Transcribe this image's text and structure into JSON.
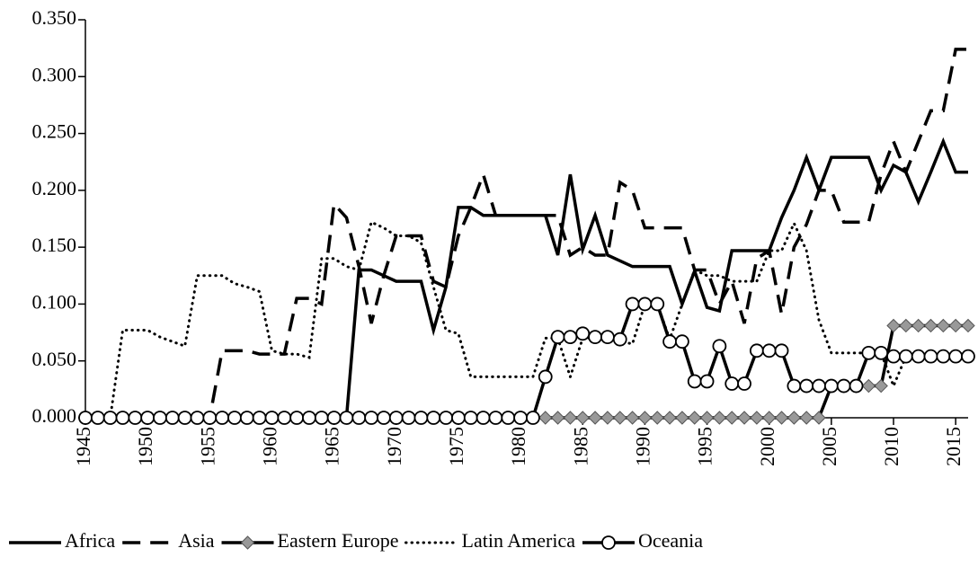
{
  "chart_data": {
    "type": "line",
    "x": [
      1945,
      1946,
      1947,
      1948,
      1949,
      1950,
      1951,
      1952,
      1953,
      1954,
      1955,
      1956,
      1957,
      1958,
      1959,
      1960,
      1961,
      1962,
      1963,
      1964,
      1965,
      1966,
      1967,
      1968,
      1969,
      1970,
      1971,
      1972,
      1973,
      1974,
      1975,
      1976,
      1977,
      1978,
      1979,
      1980,
      1981,
      1982,
      1983,
      1984,
      1985,
      1986,
      1987,
      1988,
      1989,
      1990,
      1991,
      1992,
      1993,
      1994,
      1995,
      1996,
      1997,
      1998,
      1999,
      2000,
      2001,
      2002,
      2003,
      2004,
      2005,
      2006,
      2007,
      2008,
      2009,
      2010,
      2011,
      2012,
      2013,
      2014,
      2015,
      2016
    ],
    "xlim": [
      1945,
      2016
    ],
    "xticks": [
      1945,
      1950,
      1955,
      1960,
      1965,
      1970,
      1975,
      1980,
      1985,
      1990,
      1995,
      2000,
      2005,
      2010,
      2015
    ],
    "ylim": [
      0,
      0.35
    ],
    "yticks": [
      {
        "value": 0,
        "label": "0.000"
      },
      {
        "value": 0.05,
        "label": "0.050"
      },
      {
        "value": 0.1,
        "label": "0.100"
      },
      {
        "value": 0.15,
        "label": "0.150"
      },
      {
        "value": 0.2,
        "label": "0.200"
      },
      {
        "value": 0.25,
        "label": "0.250"
      },
      {
        "value": 0.3,
        "label": "0.300"
      },
      {
        "value": 0.35,
        "label": "0.350"
      }
    ],
    "legend": "bottom",
    "series": [
      {
        "name": "Africa",
        "color": "#000000",
        "line_style": "solid",
        "marker": "none",
        "values": [
          0,
          0,
          0,
          0,
          0,
          0,
          0,
          0,
          0,
          0,
          0,
          0,
          0,
          0,
          0,
          0,
          0,
          0,
          0,
          0,
          0,
          0,
          0.13,
          0.13,
          0.125,
          0.12,
          0.12,
          0.12,
          0.077,
          0.115,
          0.185,
          0.185,
          0.178,
          0.178,
          0.178,
          0.178,
          0.178,
          0.178,
          0.143,
          0.214,
          0.148,
          0.178,
          0.143,
          0.138,
          0.133,
          0.133,
          0.133,
          0.133,
          0.1,
          0.129,
          0.097,
          0.094,
          0.147,
          0.147,
          0.147,
          0.147,
          0.176,
          0.2,
          0.229,
          0.2,
          0.229,
          0.229,
          0.229,
          0.229,
          0.2,
          0.222,
          0.216,
          0.19,
          0.216,
          0.243,
          0.216,
          0.216
        ]
      },
      {
        "name": "Asia",
        "color": "#000000",
        "line_style": "dashed",
        "marker": "none",
        "values": [
          0,
          0,
          0,
          0,
          0,
          0,
          0,
          0,
          0,
          0,
          0,
          0.059,
          0.059,
          0.059,
          0.056,
          0.056,
          0.056,
          0.105,
          0.105,
          0.1,
          0.188,
          0.176,
          0.133,
          0.083,
          0.125,
          0.16,
          0.16,
          0.16,
          0.12,
          0.115,
          0.16,
          0.185,
          0.214,
          0.178,
          0.178,
          0.178,
          0.178,
          0.178,
          0.178,
          0.143,
          0.15,
          0.143,
          0.143,
          0.207,
          0.2,
          0.167,
          0.167,
          0.167,
          0.167,
          0.13,
          0.13,
          0.1,
          0.12,
          0.083,
          0.14,
          0.147,
          0.091,
          0.15,
          0.17,
          0.2,
          0.2,
          0.172,
          0.172,
          0.172,
          0.214,
          0.243,
          0.216,
          0.243,
          0.27,
          0.27,
          0.324,
          0.324
        ]
      },
      {
        "name": "Eastern Europe",
        "color": "#000000",
        "marker_color": "#999999",
        "line_style": "solid",
        "marker": "diamond",
        "values": [
          null,
          null,
          null,
          null,
          null,
          null,
          null,
          null,
          null,
          null,
          null,
          null,
          null,
          null,
          null,
          null,
          null,
          null,
          null,
          null,
          null,
          null,
          null,
          null,
          null,
          null,
          null,
          null,
          null,
          null,
          null,
          null,
          null,
          null,
          null,
          null,
          null,
          0,
          0,
          0,
          0,
          0,
          0,
          0,
          0,
          0,
          0,
          0,
          0,
          0,
          0,
          0,
          0,
          0,
          0,
          0,
          0,
          0,
          0,
          0,
          0.028,
          0.028,
          0.028,
          0.028,
          0.028,
          0.081,
          0.081,
          0.081,
          0.081,
          0.081,
          0.081,
          0.081
        ]
      },
      {
        "name": "Latin America",
        "color": "#000000",
        "line_style": "dotted",
        "marker": "none",
        "values": [
          0,
          0,
          0,
          0.077,
          0.077,
          0.077,
          0.071,
          0.067,
          0.063,
          0.125,
          0.125,
          0.125,
          0.118,
          0.115,
          0.111,
          0.059,
          0.056,
          0.056,
          0.053,
          0.14,
          0.14,
          0.133,
          0.13,
          0.172,
          0.167,
          0.16,
          0.16,
          0.154,
          0.115,
          0.077,
          0.074,
          0.036,
          0.036,
          0.036,
          0.036,
          0.036,
          0.036,
          0.07,
          0.07,
          0.036,
          0.07,
          0.07,
          0.07,
          0.067,
          0.065,
          0.1,
          0.1,
          0.069,
          0.1,
          0.13,
          0.125,
          0.125,
          0.12,
          0.12,
          0.12,
          0.147,
          0.147,
          0.171,
          0.147,
          0.086,
          0.057,
          0.057,
          0.057,
          0.057,
          0.057,
          0.028,
          0.054,
          0.054,
          0.054,
          0.054,
          0.054,
          0.054
        ]
      },
      {
        "name": "Oceania",
        "color": "#000000",
        "marker_color": "#ffffff",
        "line_style": "solid",
        "marker": "circle",
        "values": [
          0,
          0,
          0,
          0,
          0,
          0,
          0,
          0,
          0,
          0,
          0,
          0,
          0,
          0,
          0,
          0,
          0,
          0,
          0,
          0,
          0,
          0,
          0,
          0,
          0,
          0,
          0,
          0,
          0,
          0,
          0,
          0,
          0,
          0,
          0,
          0,
          0,
          0.036,
          0.071,
          0.071,
          0.074,
          0.071,
          0.071,
          0.069,
          0.1,
          0.1,
          0.1,
          0.067,
          0.067,
          0.032,
          0.032,
          0.063,
          0.03,
          0.03,
          0.059,
          0.059,
          0.059,
          0.028,
          0.028,
          0.028,
          0.028,
          0.028,
          0.028,
          0.057,
          0.057,
          0.054,
          0.054,
          0.054,
          0.054,
          0.054,
          0.054,
          0.054
        ]
      }
    ]
  }
}
